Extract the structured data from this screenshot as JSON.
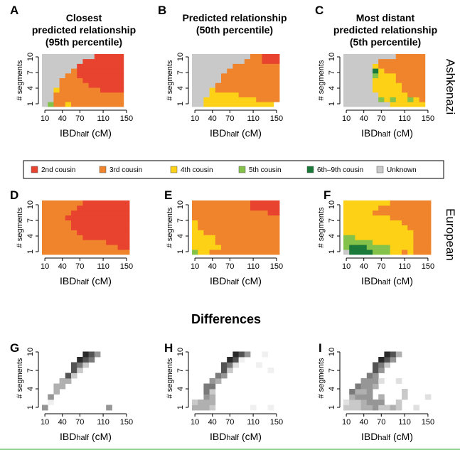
{
  "colors": {
    "2nd cousin": "#E8432E",
    "3rd cousin": "#F0842C",
    "4th cousin": "#FCD116",
    "5th cousin": "#84C24A",
    "6th-9th cousin": "#1B7A3A",
    "Unknown": "#C9C9C9"
  },
  "column_titles": [
    [
      "Closest",
      "predicted relationship",
      "(95th percentile)"
    ],
    [
      "Predicted relationship",
      "(50th percentile)"
    ],
    [
      "Most distant",
      "predicted relationship",
      "(5th percentile)"
    ]
  ],
  "row_labels": [
    "Ashkenazi",
    "European"
  ],
  "section_title": "Differences",
  "legend": [
    {
      "label": "2nd cousin",
      "color": "#E8432E"
    },
    {
      "label": "3rd cousin",
      "color": "#F0842C"
    },
    {
      "label": "4th cousin",
      "color": "#FCD116"
    },
    {
      "label": "5th cousin",
      "color": "#84C24A"
    },
    {
      "label": "6th–9th cousin",
      "color": "#1B7A3A"
    },
    {
      "label": "Unknown",
      "color": "#C9C9C9"
    }
  ],
  "chart_data": {
    "type": "heatmap",
    "x_bins": [
      10,
      20,
      30,
      40,
      50,
      60,
      70,
      80,
      90,
      100,
      110,
      120,
      130,
      140,
      150
    ],
    "x_ticks": [
      10,
      40,
      70,
      110,
      150
    ],
    "y_ticks": [
      1,
      4,
      7,
      10
    ],
    "xlabel_main": "IBD",
    "xlabel_sub": "half",
    "xlabel_unit": " (cM)",
    "ylabel": "# segments",
    "panels": [
      {
        "id": "A",
        "kind": "class",
        "rows": [
          "XGUUYUUUUUUUUU.",
          "XXUUUUUUUUUUUU.",
          "XXUUUUUUUUUUUU.",
          "XXYUUUUUUUTTTT.",
          "XXXUUUUUTTTTTT.",
          "XXXUUUUTTTTTTT.",
          "XXXXUUTTTTTTTT.",
          "XXXXXUTTTTTTTT.",
          "XXXXXXTTTTTTTT.",
          "XXXXXXXTTTTTTT.",
          "XXXXXXXXXTTTTT."
        ]
      },
      {
        "id": "B",
        "kind": "class",
        "rows": [
          "XXYYYYYYYYYYYY.",
          "XXYYYYYYYYYUUUU",
          "XXXYYYYYUUUUUUU",
          "XXXYUUUUUUUUUUU",
          "XXXXUUUUUUUUUUU",
          "XXXXXUUUUUUUUUU",
          "XXXXXUUUUUUUUUU",
          "XXXXXXUUUUUUUUU",
          "XXXXXXXUUUUUUUU",
          "XXXXXXXXXUUUTTT",
          "XXXXXXXXXXUUTTT"
        ]
      },
      {
        "id": "C",
        "kind": "class",
        "rows": [
          "XXXXXXXXYYYYYY.",
          "XXXXXXGYGYYGYU.",
          "XXXXXXYYYYYUUU.",
          "XXXXXYYYYYUUUU.",
          "XXXXXYYYYYUUUU.",
          "XXXXXYYYYUUUUU.",
          "XXXXXGYYYUUUUU.",
          "XXXXXDYUUUUUUU.",
          "XXXXXYUUUUUUUU.",
          "XXXXXXUUUUUUUU.",
          "XXXXXXXXXUUUUU."
        ]
      },
      {
        "id": "D",
        "kind": "class",
        "rows": [
          "UUUUUUUUUUUUUUU",
          "UUUUUUUUUUUUUTT",
          "UUUUUUUUUUUTTTT",
          "UUUUUUUTTTTTTTT",
          "UUUUUUTTTTTTTTT",
          "UUUUUTTTTTTTTTT",
          "UUUUUTTTTTTTTTT",
          "UUUUTTTTTTTTTTT",
          "UUUUUTTTTTTTTTT",
          "UUUUUUTTTTTTTTT",
          "UUUUUUUTTTTTTTT"
        ]
      },
      {
        "id": "E",
        "kind": "class",
        "rows": [
          "GYYUUUUUUUUUUUU",
          "YYYYYUUUUUUUUUU",
          "YYYYUUUUUUUUUUU",
          "YYYYUUUUUUUUUUU",
          "YYUUUUUUUUUUUUU",
          "YUUUUUUUUUUUUUU",
          "YUUUUUUUUUUUUUU",
          "UUUUUUUUUUUUUUU",
          "UUUUUUUUUUUUUTT",
          "UUUUUUUUUUTTTTT",
          "UUUUUUUUUUTTTTT"
        ]
      },
      {
        "id": "F",
        "kind": "class",
        "rows": [
          "XDDDDGGGYYUYUUU",
          "GDDDGGGGYYYYUUU",
          "GGGGGYYYYYYYUUU",
          "GGYYYYYYYYYYUUU",
          "YYYYYYYYYYYYUUU",
          "YYYYYYYYYYYUUUU",
          "YYYYYYYYYYUUUUU",
          "YYYYYYYYUUUUUUU",
          "YYYYYUUUUUUUUUU",
          "YYYYYYUUUUUUUUU",
          "YYYYYYYYUUUUUUU"
        ]
      },
      {
        "id": "G",
        "kind": "diff",
        "rows": [
          "5..........5...",
          ".1.............",
          ".5.............",
          "..4............",
          "..44...........",
          "...44..........",
          "....73.........",
          ".....73........",
          ".....763.......",
          "......876......",
          ".......875.....",
          "..............."
        ]
      },
      {
        "id": "H",
        "kind": "diff",
        "rows": [
          "4443......1..1.",
          "3444...........",
          "..54...........",
          "..63...........",
          "..66...........",
          "...54..........",
          "....65.........",
          ".....73......1.",
          ".....762...1...",
          "......871......",
          ".......875..1..",
          "..............."
        ]
      },
      {
        "id": "I",
        "kind": "diff",
        "rows": [
          "3334453343..2..",
          "2334555..3.....",
          ".4555.4...3...2",
          ".6445.....3....",
          "..6554.........",
          "...5552..2.....",
          "....65.........",
          ".....75........",
          ".....763.......",
          "......875......",
          ".......874.....",
          "..............."
        ]
      }
    ]
  }
}
